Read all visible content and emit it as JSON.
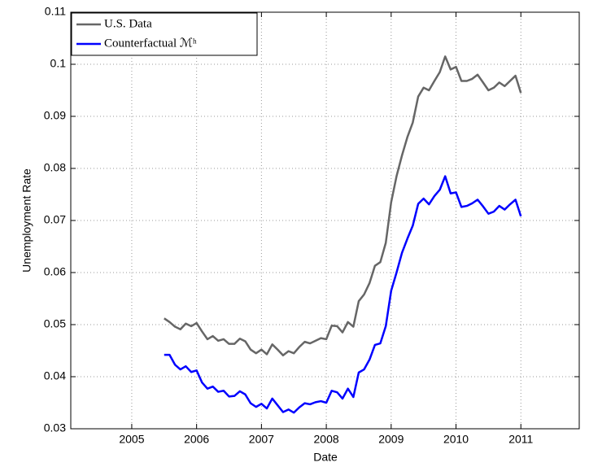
{
  "chart_data": {
    "type": "line",
    "xlabel": "Date",
    "ylabel": "Unemployment Rate",
    "x": [
      2005.5,
      2005.583,
      2005.667,
      2005.75,
      2005.833,
      2005.917,
      2006.0,
      2006.083,
      2006.167,
      2006.25,
      2006.333,
      2006.417,
      2006.5,
      2006.583,
      2006.667,
      2006.75,
      2006.833,
      2006.917,
      2007.0,
      2007.083,
      2007.167,
      2007.25,
      2007.333,
      2007.417,
      2007.5,
      2007.583,
      2007.667,
      2007.75,
      2007.833,
      2007.917,
      2008.0,
      2008.083,
      2008.167,
      2008.25,
      2008.333,
      2008.417,
      2008.5,
      2008.583,
      2008.667,
      2008.75,
      2008.833,
      2008.917,
      2009.0,
      2009.083,
      2009.167,
      2009.25,
      2009.333,
      2009.417,
      2009.5,
      2009.583,
      2009.667,
      2009.75,
      2009.833,
      2009.917,
      2010.0,
      2010.083,
      2010.167,
      2010.25,
      2010.333,
      2010.417,
      2010.5,
      2010.583,
      2010.667,
      2010.75,
      2010.833,
      2010.917,
      2011.0
    ],
    "series": [
      {
        "name": "U.S. Data",
        "color": "#666666",
        "values": [
          0.0512,
          0.0505,
          0.0496,
          0.0491,
          0.0502,
          0.0497,
          0.0503,
          0.0487,
          0.0472,
          0.0478,
          0.0469,
          0.0472,
          0.0463,
          0.0463,
          0.0473,
          0.0468,
          0.0452,
          0.0445,
          0.0452,
          0.0443,
          0.0462,
          0.0452,
          0.0441,
          0.0449,
          0.0445,
          0.0457,
          0.0467,
          0.0464,
          0.0469,
          0.0474,
          0.0472,
          0.0498,
          0.0497,
          0.0485,
          0.0505,
          0.0496,
          0.0545,
          0.0558,
          0.058,
          0.0613,
          0.062,
          0.0657,
          0.0735,
          0.0785,
          0.0825,
          0.086,
          0.0888,
          0.0938,
          0.0955,
          0.095,
          0.0968,
          0.0985,
          0.1015,
          0.099,
          0.0995,
          0.0968,
          0.0968,
          0.0972,
          0.098,
          0.0965,
          0.095,
          0.0955,
          0.0965,
          0.0958,
          0.0968,
          0.0978,
          0.0945
        ]
      },
      {
        "name": "Counterfactual ℳʰ",
        "color": "#0000ff",
        "values": [
          0.0442,
          0.0442,
          0.0423,
          0.0414,
          0.042,
          0.0409,
          0.0412,
          0.0389,
          0.0377,
          0.0381,
          0.0371,
          0.0373,
          0.0362,
          0.0363,
          0.0372,
          0.0366,
          0.0349,
          0.0342,
          0.0348,
          0.0339,
          0.0358,
          0.0345,
          0.0332,
          0.0337,
          0.0331,
          0.0341,
          0.0349,
          0.0347,
          0.0351,
          0.0353,
          0.035,
          0.0373,
          0.037,
          0.0358,
          0.0377,
          0.0361,
          0.0408,
          0.0414,
          0.0433,
          0.0461,
          0.0464,
          0.0497,
          0.0565,
          0.06,
          0.0638,
          0.0665,
          0.069,
          0.0732,
          0.0742,
          0.0731,
          0.0747,
          0.0759,
          0.0785,
          0.0752,
          0.0754,
          0.0726,
          0.0728,
          0.0733,
          0.074,
          0.0727,
          0.0713,
          0.0717,
          0.0728,
          0.0721,
          0.0731,
          0.074,
          0.0708
        ]
      }
    ],
    "xlim": [
      2004.06,
      2011.9
    ],
    "xticks": [
      2005,
      2006,
      2007,
      2008,
      2009,
      2010,
      2011
    ],
    "ylim": [
      0.03,
      0.11
    ],
    "yticks": [
      0.03,
      0.04,
      0.05,
      0.06,
      0.07,
      0.08,
      0.09,
      0.1,
      0.11
    ],
    "grid": true,
    "legend": "upper-left"
  }
}
